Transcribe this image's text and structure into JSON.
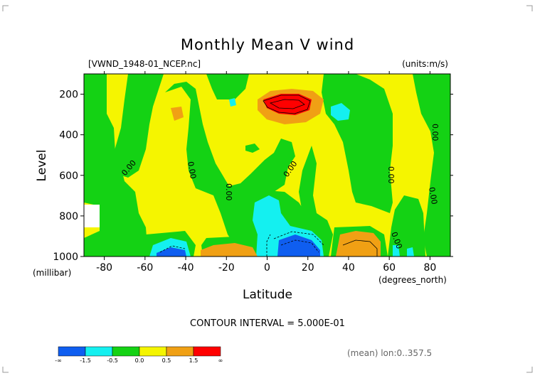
{
  "chart_data": {
    "type": "contour",
    "title": "Monthly Mean V wind",
    "file_label": "[VWND_1948-01_NCEP.nc]",
    "units_label": "(units:m/s)",
    "xlabel": "Latitude",
    "x_units": "(degrees_north)",
    "ylabel": "Level",
    "y_units": "(millibar)",
    "xlim": [
      -90,
      90
    ],
    "ylim": [
      1000,
      100
    ],
    "x_ticks": [
      -80,
      -60,
      -40,
      -20,
      0,
      20,
      40,
      60,
      80
    ],
    "x_tick_labels": [
      "-80",
      "-60",
      "-40",
      "-20",
      "0",
      "20",
      "40",
      "60",
      "80"
    ],
    "y_ticks": [
      200,
      400,
      600,
      800,
      1000
    ],
    "y_tick_labels": [
      "200",
      "400",
      "600",
      "800",
      "1000"
    ],
    "contour_interval_text": "CONTOUR INTERVAL = 5.000E-01",
    "contour_interval": 0.5,
    "zero_contour_label": "0.00",
    "levels": [
      "-∞",
      "-1.5",
      "-0.5",
      "0.0",
      "0.5",
      "1.5",
      "∞"
    ],
    "colors": [
      "#0f5ef0",
      "#14f0f0",
      "#14d214",
      "#f5f500",
      "#f0a014",
      "#ff0000"
    ],
    "footer": "(mean) lon:0..357.5",
    "features": [
      {
        "lat": 10,
        "level": 150,
        "v": 1.8
      },
      {
        "lat": 12,
        "level": 950,
        "v": -1.8
      },
      {
        "lat": -50,
        "level": 975,
        "v": -1.0
      },
      {
        "lat": -20,
        "level": 975,
        "v": 1.0
      },
      {
        "lat": 50,
        "level": 930,
        "v": 1.0
      },
      {
        "lat": -44,
        "level": 210,
        "v": 0.6
      },
      {
        "lat": 42,
        "level": 200,
        "v": -0.6
      }
    ]
  }
}
